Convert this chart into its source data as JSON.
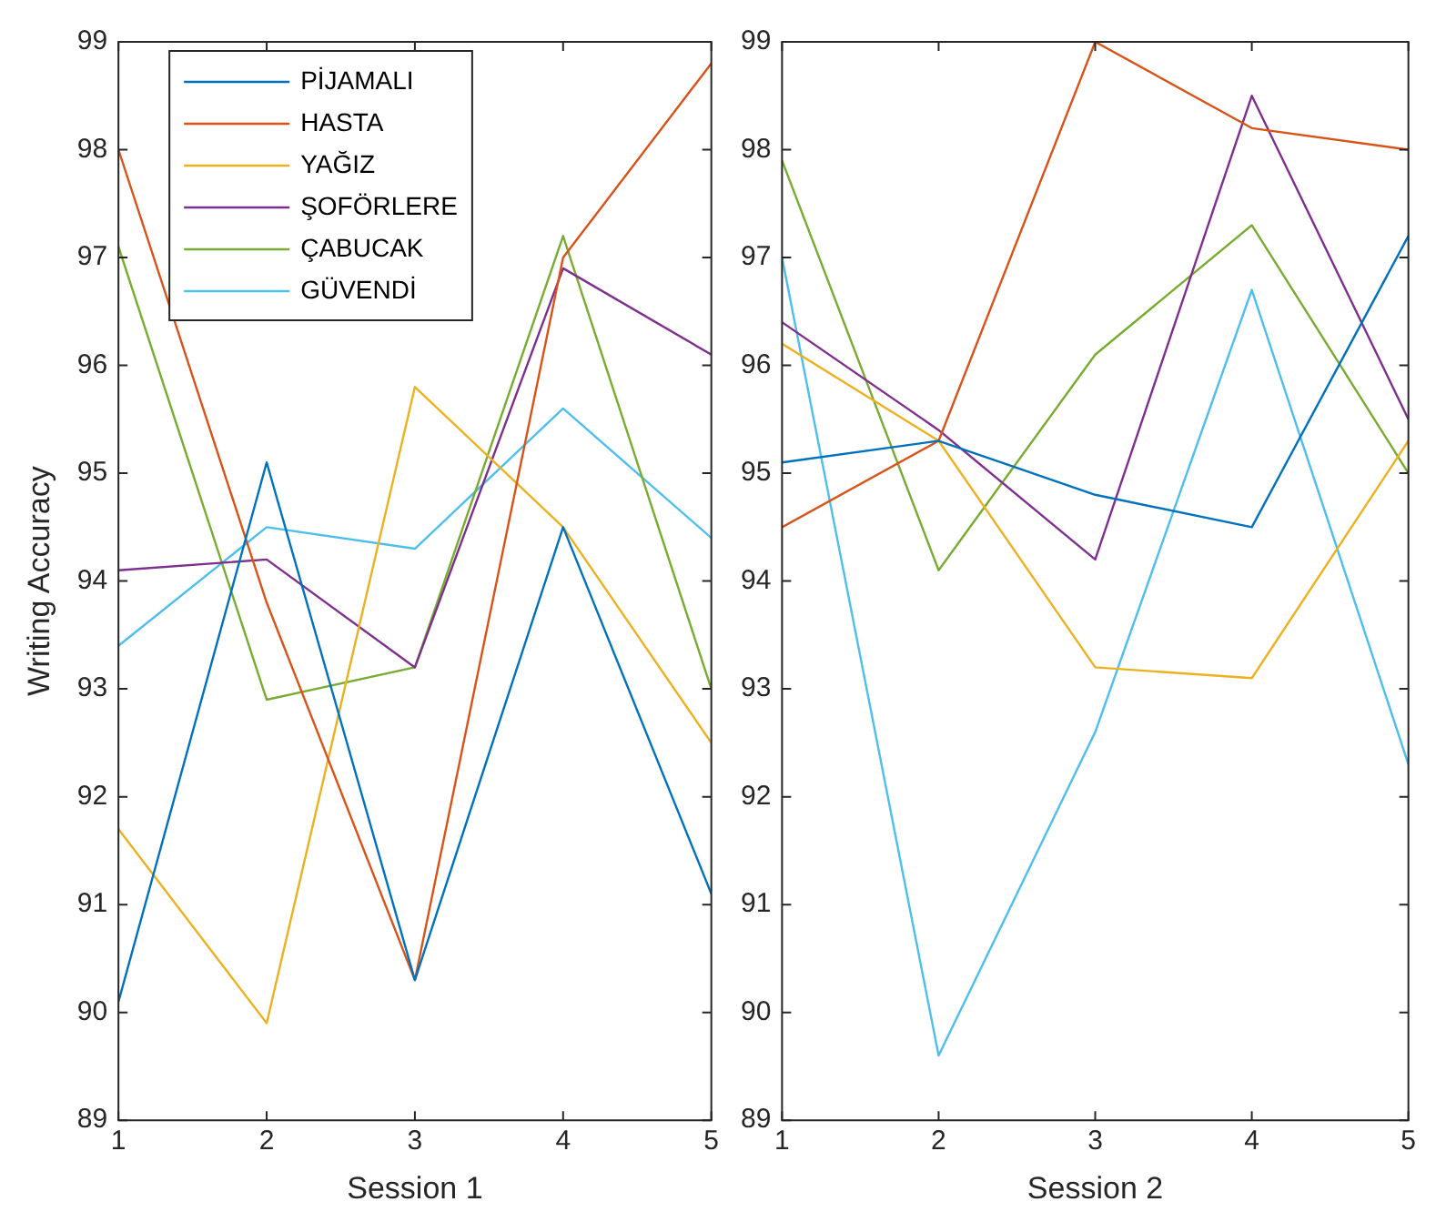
{
  "chart_data": [
    {
      "type": "line",
      "xlabel": "Session 1",
      "ylabel": "Writing Accuracy",
      "x": [
        1,
        2,
        3,
        4,
        5
      ],
      "xlim": [
        1,
        5
      ],
      "xticks": [
        1,
        2,
        3,
        4,
        5
      ],
      "ylim": [
        89,
        99
      ],
      "yticks": [
        89,
        90,
        91,
        92,
        93,
        94,
        95,
        96,
        97,
        98,
        99
      ],
      "grid": false,
      "legend": "top left",
      "marker": "none",
      "line_style": "solid",
      "series": [
        {
          "name": "PİJAMALI",
          "color": "#0072bd",
          "values": [
            90.1,
            95.1,
            90.3,
            94.5,
            91.1
          ]
        },
        {
          "name": "HASTA",
          "color": "#d95319",
          "values": [
            98.0,
            93.8,
            90.3,
            97.0,
            98.8
          ]
        },
        {
          "name": "YAĞIZ",
          "color": "#edb120",
          "values": [
            91.7,
            89.9,
            95.8,
            94.5,
            92.5
          ]
        },
        {
          "name": "ŞOFÖRLERE",
          "color": "#7e2f8e",
          "values": [
            94.1,
            94.2,
            93.2,
            96.9,
            96.1
          ]
        },
        {
          "name": "ÇABUCAK",
          "color": "#77ac30",
          "values": [
            97.1,
            92.9,
            93.2,
            97.2,
            93.0
          ]
        },
        {
          "name": "GÜVENDİ",
          "color": "#4dbeee",
          "values": [
            93.4,
            94.5,
            94.3,
            95.6,
            94.4
          ]
        }
      ]
    },
    {
      "type": "line",
      "xlabel": "Session 2",
      "x": [
        1,
        2,
        3,
        4,
        5
      ],
      "xlim": [
        1,
        5
      ],
      "xticks": [
        1,
        2,
        3,
        4,
        5
      ],
      "ylim": [
        89,
        99
      ],
      "yticks": [
        89,
        90,
        91,
        92,
        93,
        94,
        95,
        96,
        97,
        98,
        99
      ],
      "grid": false,
      "marker": "none",
      "line_style": "solid",
      "series": [
        {
          "color": "#0072bd",
          "values": [
            95.1,
            95.3,
            94.8,
            94.5,
            97.2
          ]
        },
        {
          "color": "#d95319",
          "values": [
            94.5,
            95.3,
            99.0,
            98.2,
            98.0
          ]
        },
        {
          "color": "#edb120",
          "values": [
            96.2,
            95.3,
            93.2,
            93.1,
            95.3
          ]
        },
        {
          "color": "#7e2f8e",
          "values": [
            96.4,
            95.4,
            94.2,
            98.5,
            95.5
          ]
        },
        {
          "color": "#77ac30",
          "values": [
            97.9,
            94.1,
            96.1,
            97.3,
            95.0
          ]
        },
        {
          "color": "#4dbeee",
          "values": [
            97.0,
            89.6,
            92.6,
            96.7,
            92.3
          ]
        }
      ]
    }
  ]
}
